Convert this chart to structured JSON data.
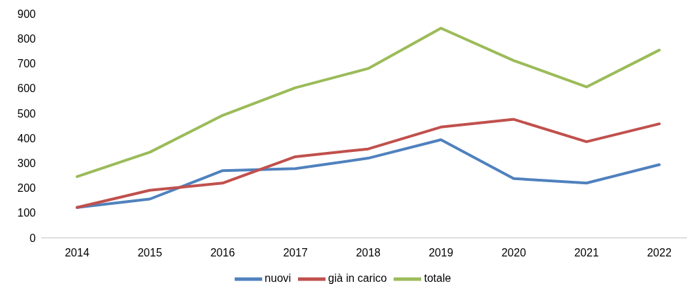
{
  "chart_data": {
    "type": "line",
    "categories": [
      "2014",
      "2015",
      "2016",
      "2017",
      "2018",
      "2019",
      "2020",
      "2021",
      "2022"
    ],
    "series": [
      {
        "name": "nuovi",
        "color": "#4f81bd",
        "values": [
          122,
          156,
          270,
          278,
          320,
          394,
          238,
          220,
          294
        ]
      },
      {
        "name": "già in carico",
        "color": "#c0504d",
        "values": [
          122,
          191,
          220,
          326,
          357,
          445,
          476,
          386,
          458
        ]
      },
      {
        "name": "totale",
        "color": "#9bbb59",
        "values": [
          246,
          344,
          492,
          603,
          680,
          842,
          712,
          606,
          754
        ]
      }
    ],
    "ylim": [
      0,
      900
    ],
    "yticks": [
      0,
      100,
      200,
      300,
      400,
      500,
      600,
      700,
      800,
      900
    ],
    "grid": false,
    "legend": "bottom",
    "marker": "none",
    "line_style": "solid"
  }
}
